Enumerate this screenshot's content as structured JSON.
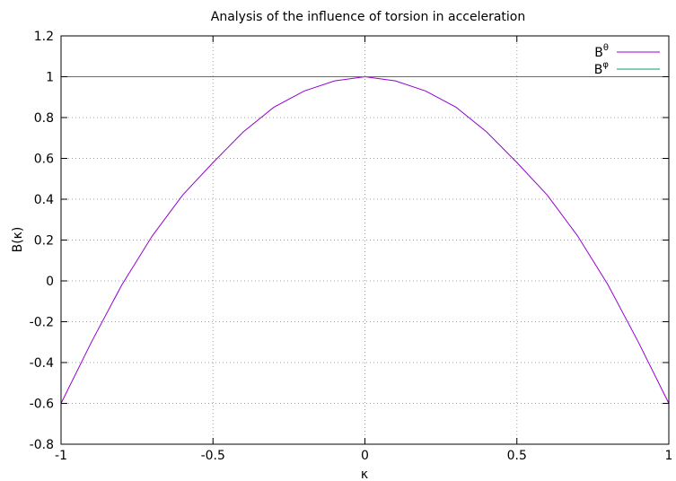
{
  "chart_data": {
    "type": "line",
    "title": "Analysis of the influence of torsion in acceleration",
    "xlabel": "κ",
    "ylabel": "B(κ)",
    "xlim": [
      -1,
      1
    ],
    "ylim": [
      -0.8,
      1.2
    ],
    "x_ticks": [
      "-1",
      "-0.5",
      "0",
      "0.5",
      "1"
    ],
    "x_tick_values": [
      -1,
      -0.5,
      0,
      0.5,
      1
    ],
    "y_ticks": [
      "-0.8",
      "-0.6",
      "-0.4",
      "-0.2",
      "0",
      "0.2",
      "0.4",
      "0.6",
      "0.8",
      "1",
      "1.2"
    ],
    "y_tick_values": [
      -0.8,
      -0.6,
      -0.4,
      -0.2,
      0,
      0.2,
      0.4,
      0.6,
      0.8,
      1,
      1.2
    ],
    "grid": true,
    "legend_position": "top-right",
    "series": [
      {
        "name": "Bθ",
        "name_base": "B",
        "name_sup": "θ",
        "color": "#9400d3",
        "x": [
          -1,
          -0.9,
          -0.8,
          -0.7,
          -0.6,
          -0.5,
          -0.4,
          -0.3,
          -0.2,
          -0.1,
          0,
          0.1,
          0.2,
          0.3,
          0.4,
          0.5,
          0.6,
          0.7,
          0.8,
          0.9,
          1
        ],
        "y": [
          -0.6,
          -0.3,
          -0.02,
          0.22,
          0.42,
          0.58,
          0.73,
          0.85,
          0.93,
          0.98,
          1.0,
          0.98,
          0.93,
          0.85,
          0.73,
          0.58,
          0.42,
          0.22,
          -0.02,
          -0.3,
          -0.6
        ]
      },
      {
        "name": "Bφ",
        "name_base": "B",
        "name_sup": "φ",
        "color": "#009e73",
        "x": [
          -1,
          1
        ],
        "y": [
          1,
          1
        ]
      }
    ]
  }
}
